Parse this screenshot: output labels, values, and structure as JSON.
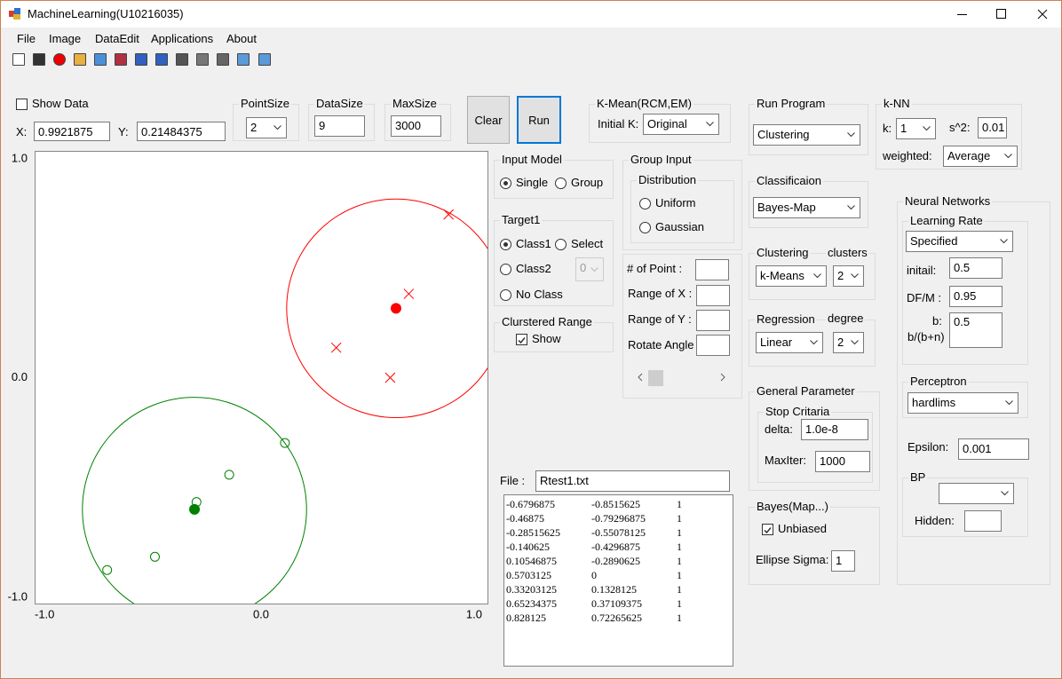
{
  "window": {
    "title": "MachineLearning(U10216035)"
  },
  "menu": [
    "File",
    "Image",
    "DataEdit",
    "Applications",
    "About"
  ],
  "controls": {
    "show_data": "Show Data",
    "x_label": "X:",
    "x_value": "0.9921875",
    "y_label": "Y:",
    "y_value": "0.21484375",
    "point_size": {
      "title": "PointSize",
      "value": "2"
    },
    "data_size": {
      "title": "DataSize",
      "value": "9"
    },
    "max_size": {
      "title": "MaxSize",
      "value": "3000"
    },
    "clear": "Clear",
    "run": "Run",
    "k_mean": {
      "title": "K-Mean(RCM,EM)",
      "label": "Initial K:",
      "value": "Original"
    },
    "run_program": {
      "title": "Run Program",
      "value": "Clustering"
    },
    "knn": {
      "title": "k-NN",
      "k_label": "k:",
      "k_value": "1",
      "s2_label": "s^2:",
      "s2_value": "0.01",
      "weighted_label": "weighted:",
      "weighted_value": "Average"
    },
    "input_model": {
      "title": "Input Model",
      "options": [
        "Single",
        "Group"
      ]
    },
    "target1": {
      "title": "Target1",
      "class1": "Class1",
      "select": "Select",
      "class2": "Class2",
      "class2_value": "0",
      "no_class": "No Class"
    },
    "clustered_range": {
      "title": "Clurstered Range",
      "show": "Show"
    },
    "group_input": {
      "title": "Group Input",
      "distribution": "Distribution",
      "options": [
        "Uniform",
        "Gaussian"
      ]
    },
    "group_params": [
      "# of Point :",
      "Range of X :",
      "Range of Y :",
      "Rotate Angle :"
    ],
    "classification": {
      "title": "Classificaion",
      "value": "Bayes-Map"
    },
    "clustering": {
      "title": "Clustering",
      "clusters_label": "clusters",
      "method": "k-Means",
      "clusters": "2"
    },
    "regression": {
      "title": "Regression",
      "degree_label": "degree",
      "method": "Linear",
      "degree": "2"
    },
    "general": {
      "title": "General Parameter",
      "stop": "Stop Critaria",
      "delta_label": "delta:",
      "delta": "1.0e-8",
      "maxiter_label": "MaxIter:",
      "maxiter": "1000"
    },
    "bayes": {
      "title": "Bayes(Map...)",
      "unbiased": "Unbiased",
      "sigma_label": "Ellipse Sigma:",
      "sigma": "1"
    },
    "neural": {
      "title": "Neural Networks",
      "learning_rate": "Learning Rate",
      "lr_mode": "Specified",
      "initial_label": "initail:",
      "initial": "0.5",
      "dfm_label": "DF/M :",
      "dfm": "0.95",
      "b_label": "b:",
      "bbn_label": "b/(b+n)",
      "b": "0.5",
      "perceptron": "Perceptron",
      "perceptron_fn": "hardlims",
      "epsilon_label": "Epsilon:",
      "epsilon": "0.001",
      "bp": "BP",
      "hidden_label": "Hidden:"
    },
    "file_label": "File :",
    "file_name": "Rtest1.txt",
    "file_rows": [
      [
        "-0.6796875",
        "-0.8515625",
        "1"
      ],
      [
        "-0.46875",
        "-0.79296875",
        "1"
      ],
      [
        "-0.28515625",
        "-0.55078125",
        "1"
      ],
      [
        "-0.140625",
        "-0.4296875",
        "1"
      ],
      [
        "0.10546875",
        "-0.2890625",
        "1"
      ],
      [
        "0.5703125",
        "0",
        "1"
      ],
      [
        "0.33203125",
        "0.1328125",
        "1"
      ],
      [
        "0.65234375",
        "0.37109375",
        "1"
      ],
      [
        "0.828125",
        "0.72265625",
        "1"
      ]
    ]
  },
  "chart_data": {
    "type": "scatter",
    "xlim": [
      -1,
      1
    ],
    "ylim": [
      -1,
      1
    ],
    "xticks": [
      {
        "value": -1,
        "label": "-1.0"
      },
      {
        "value": 0,
        "label": "0.0"
      },
      {
        "value": 1,
        "label": "1.0"
      }
    ],
    "yticks": [
      {
        "value": 1,
        "label": "1.0"
      },
      {
        "value": 0,
        "label": "0.0"
      },
      {
        "value": -1,
        "label": "-1.0"
      }
    ],
    "series": [
      {
        "color": "#008000",
        "marker": "circle",
        "x": [
          -0.6796875,
          -0.46875,
          -0.28515625,
          -0.140625,
          0.10546875
        ],
        "y": [
          -0.8515625,
          -0.79296875,
          -0.55078125,
          -0.4296875,
          -0.2890625
        ]
      },
      {
        "color": "#ff0000",
        "marker": "cross",
        "x": [
          0.5703125,
          0.33203125,
          0.65234375,
          0.828125
        ],
        "y": [
          0,
          0.1328125,
          0.37109375,
          0.72265625
        ]
      }
    ],
    "clusters": [
      {
        "color": "#008000",
        "center_x": -0.294,
        "center_y": -0.583,
        "radius": 0.495
      },
      {
        "color": "#ff0000",
        "center_x": 0.596,
        "center_y": 0.307,
        "radius": 0.483
      }
    ]
  }
}
